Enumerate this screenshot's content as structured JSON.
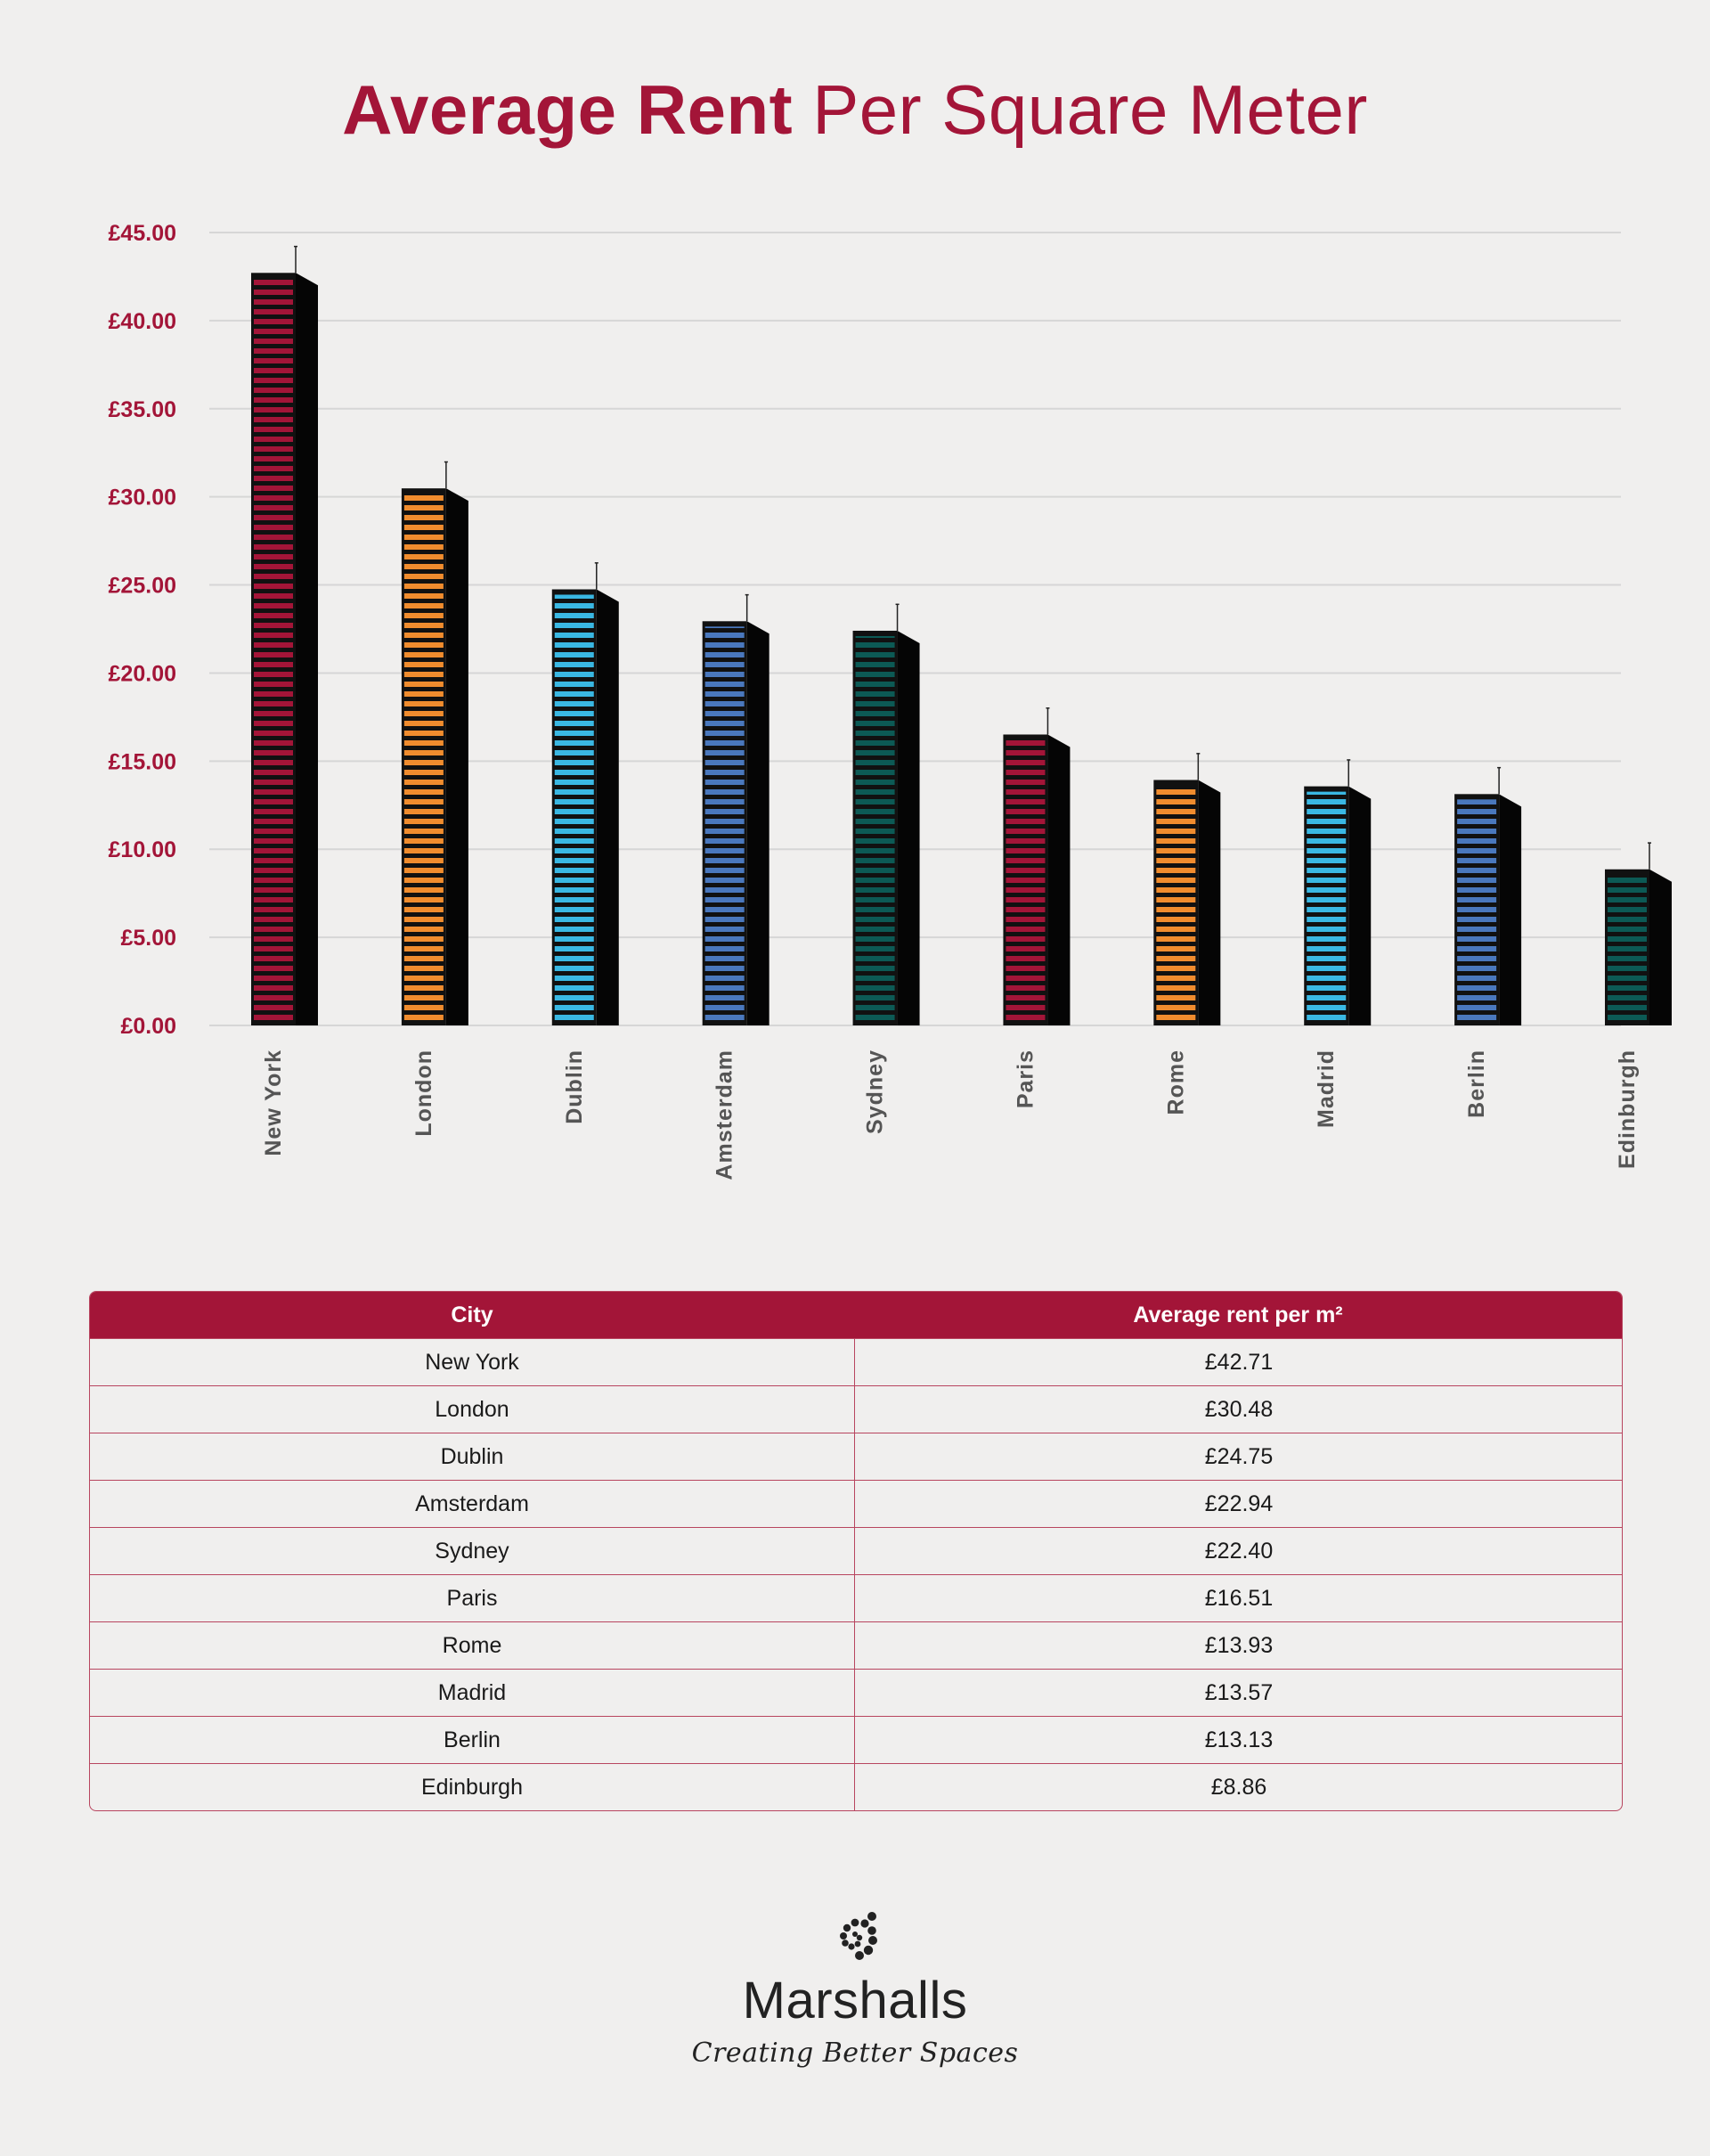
{
  "title": {
    "bold": "Average Rent",
    "rest": " Per Square Meter"
  },
  "chart_data": {
    "type": "bar",
    "categories": [
      "New York",
      "London",
      "Dublin",
      "Amsterdam",
      "Sydney",
      "Paris",
      "Rome",
      "Madrid",
      "Berlin",
      "Edinburgh"
    ],
    "values": [
      42.71,
      30.48,
      24.75,
      22.94,
      22.4,
      16.51,
      13.93,
      13.57,
      13.13,
      8.86
    ],
    "error_plus": [
      1.5,
      1.5,
      1.5,
      1.5,
      1.5,
      1.5,
      1.5,
      1.5,
      1.5,
      1.5
    ],
    "ylim": [
      0,
      45
    ],
    "yticks": [
      0,
      5,
      10,
      15,
      20,
      25,
      30,
      35,
      40,
      45
    ],
    "ytick_labels": [
      "£0.00",
      "£5.00",
      "£10.00",
      "£15.00",
      "£20.00",
      "£25.00",
      "£30.00",
      "£35.00",
      "£40.00",
      "£45.00"
    ],
    "bar_colors": [
      "#a31538",
      "#f08c2e",
      "#3ab8e3",
      "#4a78bd",
      "#0c5a55",
      "#a31538",
      "#f08c2e",
      "#3ab8e3",
      "#4a78bd",
      "#0c5a55"
    ],
    "grid": true,
    "ytick_color": "#a31538",
    "xtick_color": "#555555"
  },
  "table": {
    "headers": [
      "City",
      "Average rent per m²"
    ],
    "rows": [
      [
        "New York",
        "£42.71"
      ],
      [
        "London",
        "£30.48"
      ],
      [
        "Dublin",
        "£24.75"
      ],
      [
        "Amsterdam",
        "£22.94"
      ],
      [
        "Sydney",
        "£22.40"
      ],
      [
        "Paris",
        "£16.51"
      ],
      [
        "Rome",
        "£13.93"
      ],
      [
        "Madrid",
        "£13.57"
      ],
      [
        "Berlin",
        "£13.13"
      ],
      [
        "Edinburgh",
        "£8.86"
      ]
    ]
  },
  "logo": {
    "brand": "Marshalls",
    "tagline": "Creating Better Spaces"
  }
}
